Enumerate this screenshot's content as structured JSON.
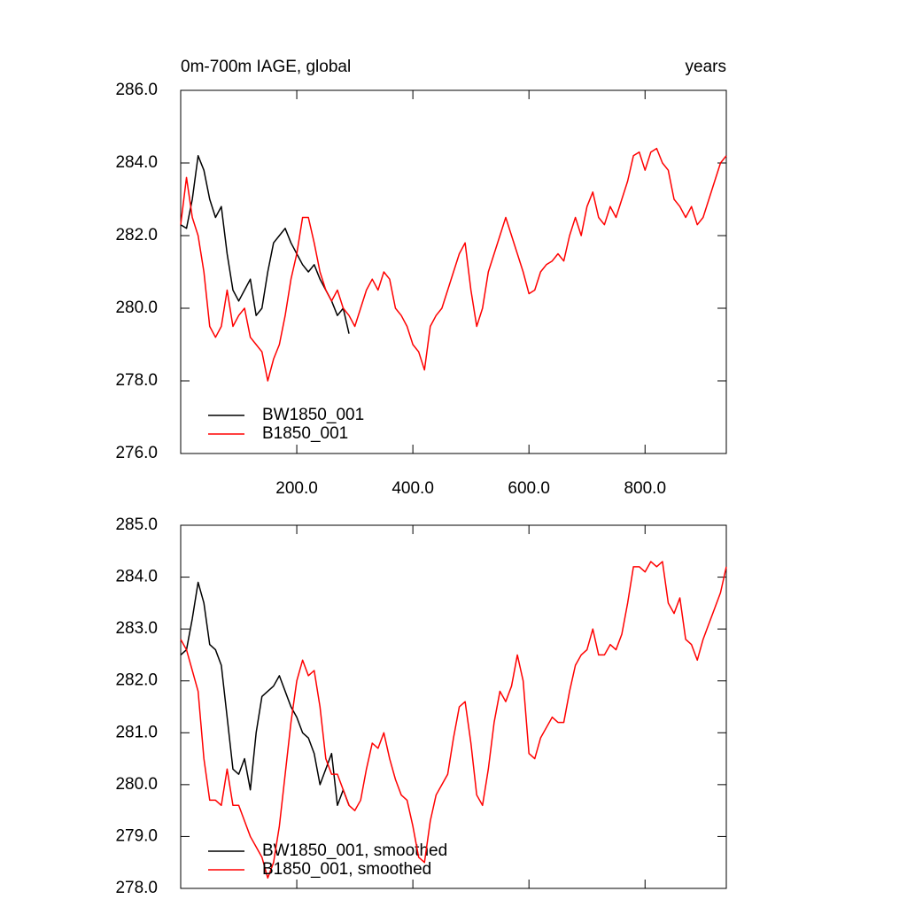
{
  "chart_data": [
    {
      "type": "line",
      "title": "0m-700m IAGE, global",
      "right_title": "years",
      "x": [
        0,
        10,
        20,
        30,
        40,
        50,
        60,
        70,
        80,
        90,
        100,
        110,
        120,
        130,
        140,
        150,
        160,
        170,
        180,
        190,
        200,
        210,
        220,
        230,
        240,
        250,
        260,
        270,
        280,
        290,
        300,
        310,
        320,
        330,
        340,
        350,
        360,
        370,
        380,
        390,
        400,
        410,
        420,
        430,
        440,
        450,
        460,
        470,
        480,
        490,
        500,
        510,
        520,
        530,
        540,
        550,
        560,
        570,
        580,
        590,
        600,
        610,
        620,
        630,
        640,
        650,
        660,
        670,
        680,
        690,
        700,
        710,
        720,
        730,
        740,
        750,
        760,
        770,
        780,
        790,
        800,
        810,
        820,
        830,
        840,
        850,
        860,
        870,
        880,
        890,
        900,
        910,
        920,
        930,
        940
      ],
      "xlim": [
        0,
        940
      ],
      "xticks": [
        {
          "value": 200,
          "label": "200.0"
        },
        {
          "value": 400,
          "label": "400.0"
        },
        {
          "value": 600,
          "label": "600.0"
        },
        {
          "value": 800,
          "label": "800.0"
        }
      ],
      "ylim": [
        276,
        286
      ],
      "yticks": [
        {
          "value": 276,
          "label": "276.0"
        },
        {
          "value": 278,
          "label": "278.0"
        },
        {
          "value": 280,
          "label": "280.0"
        },
        {
          "value": 282,
          "label": "282.0"
        },
        {
          "value": 284,
          "label": "284.0"
        },
        {
          "value": 286,
          "label": "286.0"
        }
      ],
      "series": [
        {
          "name": "BW1850_001",
          "color": "#000000",
          "values": [
            282.3,
            282.2,
            283.0,
            284.2,
            283.8,
            283.0,
            282.5,
            282.8,
            281.5,
            280.5,
            280.2,
            280.5,
            280.8,
            279.8,
            280.0,
            281.0,
            281.8,
            282.0,
            282.2,
            281.8,
            281.5,
            281.2,
            281.0,
            281.2,
            280.8,
            280.5,
            280.2,
            279.8,
            280.0,
            279.3,
            null,
            null,
            null,
            null,
            null,
            null,
            null,
            null,
            null,
            null,
            null,
            null,
            null,
            null,
            null,
            null,
            null,
            null,
            null,
            null,
            null,
            null,
            null,
            null,
            null,
            null,
            null,
            null,
            null,
            null,
            null,
            null,
            null,
            null,
            null,
            null,
            null,
            null,
            null,
            null,
            null,
            null,
            null,
            null,
            null,
            null,
            null,
            null,
            null,
            null,
            null,
            null,
            null,
            null,
            null,
            null,
            null,
            null,
            null,
            null,
            null,
            null,
            null,
            null,
            null
          ]
        },
        {
          "name": "B1850_001",
          "color": "#ff0000",
          "values": [
            282.3,
            283.6,
            282.5,
            282.0,
            281.0,
            279.5,
            279.2,
            279.5,
            280.5,
            279.5,
            279.8,
            280.0,
            279.2,
            279.0,
            278.8,
            278.0,
            278.6,
            279.0,
            279.8,
            280.8,
            281.5,
            282.5,
            282.5,
            281.8,
            281.0,
            280.5,
            280.2,
            280.5,
            280.0,
            279.8,
            279.5,
            280.0,
            280.5,
            280.8,
            280.5,
            281.0,
            280.8,
            280.0,
            279.8,
            279.5,
            279.0,
            278.8,
            278.3,
            279.5,
            279.8,
            280.0,
            280.5,
            281.0,
            281.5,
            281.8,
            280.5,
            279.5,
            280.0,
            281.0,
            281.5,
            282.0,
            282.5,
            282.0,
            281.5,
            281.0,
            280.4,
            280.5,
            281.0,
            281.2,
            281.3,
            281.5,
            281.3,
            282.0,
            282.5,
            282.0,
            282.8,
            283.2,
            282.5,
            282.3,
            282.8,
            282.5,
            283.0,
            283.5,
            284.2,
            284.3,
            283.8,
            284.3,
            284.4,
            284.0,
            283.8,
            283.0,
            282.8,
            282.5,
            282.8,
            282.3,
            282.5,
            283.0,
            283.5,
            284.0,
            284.2
          ]
        }
      ]
    },
    {
      "type": "line",
      "x": [
        0,
        10,
        20,
        30,
        40,
        50,
        60,
        70,
        80,
        90,
        100,
        110,
        120,
        130,
        140,
        150,
        160,
        170,
        180,
        190,
        200,
        210,
        220,
        230,
        240,
        250,
        260,
        270,
        280,
        290,
        300,
        310,
        320,
        330,
        340,
        350,
        360,
        370,
        380,
        390,
        400,
        410,
        420,
        430,
        440,
        450,
        460,
        470,
        480,
        490,
        500,
        510,
        520,
        530,
        540,
        550,
        560,
        570,
        580,
        590,
        600,
        610,
        620,
        630,
        640,
        650,
        660,
        670,
        680,
        690,
        700,
        710,
        720,
        730,
        740,
        750,
        760,
        770,
        780,
        790,
        800,
        810,
        820,
        830,
        840,
        850,
        860,
        870,
        880,
        890,
        900,
        910,
        920,
        930,
        940
      ],
      "xlim": [
        0,
        940
      ],
      "xticks": [
        200,
        400,
        600,
        800
      ],
      "ylim": [
        278,
        285
      ],
      "yticks": [
        {
          "value": 278,
          "label": "278.0"
        },
        {
          "value": 279,
          "label": "279.0"
        },
        {
          "value": 280,
          "label": "280.0"
        },
        {
          "value": 281,
          "label": "281.0"
        },
        {
          "value": 282,
          "label": "282.0"
        },
        {
          "value": 283,
          "label": "283.0"
        },
        {
          "value": 284,
          "label": "284.0"
        },
        {
          "value": 285,
          "label": "285.0"
        }
      ],
      "series": [
        {
          "name": "BW1850_001, smoothed",
          "color": "#000000",
          "values": [
            282.5,
            282.6,
            283.2,
            283.9,
            283.5,
            282.7,
            282.6,
            282.3,
            281.3,
            280.3,
            280.2,
            280.5,
            279.9,
            281.0,
            281.7,
            281.8,
            281.9,
            282.1,
            281.8,
            281.5,
            281.3,
            281.0,
            280.9,
            280.6,
            280.0,
            280.3,
            280.6,
            279.6,
            279.9,
            279.6,
            null,
            null,
            null,
            null,
            null,
            null,
            null,
            null,
            null,
            null,
            null,
            null,
            null,
            null,
            null,
            null,
            null,
            null,
            null,
            null,
            null,
            null,
            null,
            null,
            null,
            null,
            null,
            null,
            null,
            null,
            null,
            null,
            null,
            null,
            null,
            null,
            null,
            null,
            null,
            null,
            null,
            null,
            null,
            null,
            null,
            null,
            null,
            null,
            null,
            null,
            null,
            null,
            null,
            null,
            null,
            null,
            null,
            null,
            null,
            null,
            null,
            null,
            null,
            null,
            null
          ]
        },
        {
          "name": "B1850_001, smoothed",
          "color": "#ff0000",
          "values": [
            282.8,
            282.6,
            282.2,
            281.8,
            280.5,
            279.7,
            279.7,
            279.6,
            280.3,
            279.6,
            279.6,
            279.3,
            279.0,
            278.8,
            278.6,
            278.2,
            278.5,
            279.2,
            280.2,
            281.2,
            282.0,
            282.4,
            282.1,
            282.2,
            281.5,
            280.5,
            280.2,
            280.2,
            279.9,
            279.6,
            279.5,
            279.7,
            280.3,
            280.8,
            280.7,
            281.0,
            280.5,
            280.1,
            279.8,
            279.7,
            279.2,
            278.6,
            278.5,
            279.3,
            279.8,
            280.0,
            280.2,
            280.9,
            281.5,
            281.6,
            280.8,
            279.8,
            279.6,
            280.3,
            281.2,
            281.8,
            281.6,
            281.9,
            282.5,
            282.0,
            280.6,
            280.5,
            280.9,
            281.1,
            281.3,
            281.2,
            281.2,
            281.8,
            282.3,
            282.5,
            282.6,
            283.0,
            282.5,
            282.5,
            282.7,
            282.6,
            282.9,
            283.5,
            284.2,
            284.2,
            284.1,
            284.3,
            284.2,
            284.3,
            283.5,
            283.3,
            283.6,
            282.8,
            282.7,
            282.4,
            282.8,
            283.1,
            283.4,
            283.7,
            284.2
          ]
        }
      ]
    }
  ]
}
